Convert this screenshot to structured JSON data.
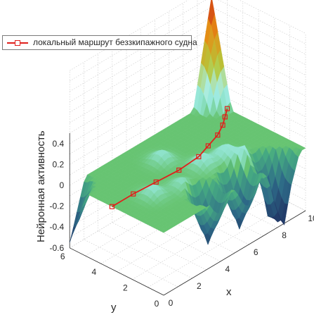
{
  "chart_data": {
    "type": "surface3d",
    "xlabel": "x",
    "ylabel": "y",
    "zlabel": "Нейронная активность",
    "xlim": [
      0,
      10
    ],
    "ylim": [
      0,
      6
    ],
    "zlim": [
      -0.6,
      0.5
    ],
    "x_ticks": [
      "0",
      "2",
      "4",
      "6",
      "8",
      "10"
    ],
    "y_ticks": [
      "0",
      "2",
      "4",
      "6"
    ],
    "z_ticks": [
      "0.4",
      "0.2",
      "0",
      "-0.2",
      "-0.4",
      "-0.6"
    ],
    "legend": [
      "локальный маршрут беззкипажного судна"
    ],
    "grid": true,
    "colormap": "parula-like",
    "route_color": "#e0201c",
    "surface_base_color": "#67c472",
    "peak": {
      "x": 10,
      "y": 6,
      "z": 1.0
    },
    "pits": [
      {
        "x": 0,
        "y": 6,
        "z": -0.55
      },
      {
        "x": 4,
        "y": 0.8,
        "z": -0.5
      },
      {
        "x": 6,
        "y": 0.6,
        "z": -0.5
      },
      {
        "x": 8,
        "y": 0.6,
        "z": -0.4
      },
      {
        "x": 8.5,
        "y": 0,
        "z": -0.5
      }
    ],
    "route": [
      {
        "x": 0,
        "y": 3.3,
        "z": 0
      },
      {
        "x": 1.5,
        "y": 3.3,
        "z": 0
      },
      {
        "x": 3,
        "y": 3.2,
        "z": 0
      },
      {
        "x": 4.5,
        "y": 3.1,
        "z": 0
      },
      {
        "x": 6,
        "y": 3.2,
        "z": 0
      },
      {
        "x": 7,
        "y": 3.5,
        "z": 0
      },
      {
        "x": 8,
        "y": 3.8,
        "z": 0
      },
      {
        "x": 8.8,
        "y": 4.2,
        "z": 0
      },
      {
        "x": 9.4,
        "y": 4.6,
        "z": 0
      },
      {
        "x": 10,
        "y": 5.0,
        "z": 0
      }
    ]
  }
}
